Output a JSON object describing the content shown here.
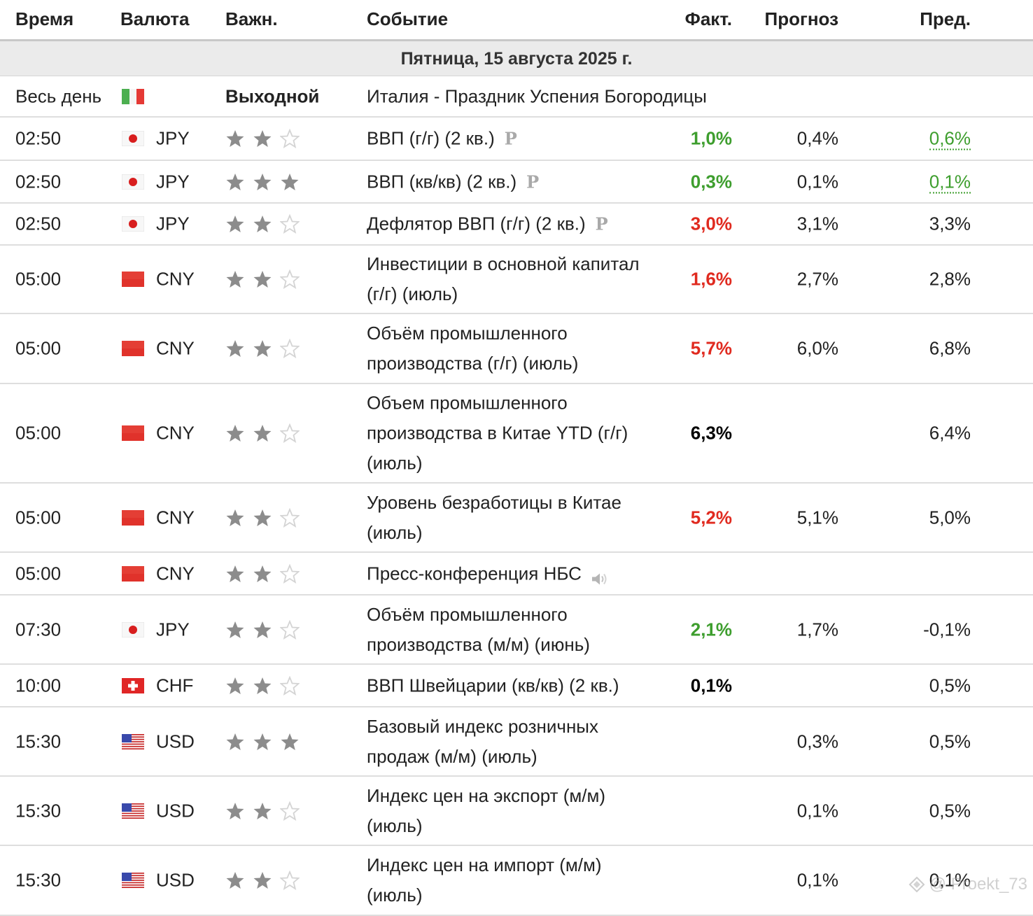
{
  "headers": {
    "time": "Время",
    "currency": "Валюта",
    "importance": "Важн.",
    "event": "Событие",
    "actual": "Факт.",
    "forecast": "Прогноз",
    "previous": "Пред."
  },
  "date_label": "Пятница, 15 августа 2025 г.",
  "holiday": {
    "time": "Весь день",
    "flag": "italy-flag",
    "label": "Выходной",
    "event": "Италия - Праздник Успения Богородицы"
  },
  "colors": {
    "positive": "#3e9e2e",
    "negative": "#e02a1f",
    "neutral": "#000000",
    "star_filled": "#8c8c8c",
    "star_empty": "#d4d4d4"
  },
  "rows": [
    {
      "time": "02:50",
      "flag": "japan-flag",
      "currency": "JPY",
      "stars": 2,
      "event": "ВВП (г/г) (2 кв.)",
      "prelim": "P",
      "speaker": false,
      "actual": "1,0%",
      "actual_class": "green",
      "forecast": "0,4%",
      "previous": "0,6%",
      "previous_revised": true
    },
    {
      "time": "02:50",
      "flag": "japan-flag",
      "currency": "JPY",
      "stars": 3,
      "event": "ВВП (кв/кв) (2 кв.)",
      "prelim": "P",
      "speaker": false,
      "actual": "0,3%",
      "actual_class": "green",
      "forecast": "0,1%",
      "previous": "0,1%",
      "previous_revised": true
    },
    {
      "time": "02:50",
      "flag": "japan-flag",
      "currency": "JPY",
      "stars": 2,
      "event": "Дефлятор ВВП (г/г) (2 кв.)",
      "prelim": "P",
      "speaker": false,
      "actual": "3,0%",
      "actual_class": "red",
      "forecast": "3,1%",
      "previous": "3,3%",
      "previous_revised": false
    },
    {
      "time": "05:00",
      "flag": "china-flag",
      "currency": "CNY",
      "stars": 2,
      "event": "Инвестиции в основной капитал (г/г) (июль)",
      "prelim": "",
      "speaker": false,
      "actual": "1,6%",
      "actual_class": "red",
      "forecast": "2,7%",
      "previous": "2,8%",
      "previous_revised": false
    },
    {
      "time": "05:00",
      "flag": "china-flag",
      "currency": "CNY",
      "stars": 2,
      "event": "Объём промышленного производства (г/г) (июль)",
      "prelim": "",
      "speaker": false,
      "actual": "5,7%",
      "actual_class": "red",
      "forecast": "6,0%",
      "previous": "6,8%",
      "previous_revised": false
    },
    {
      "time": "05:00",
      "flag": "china-flag",
      "currency": "CNY",
      "stars": 2,
      "event": "Объем промышленного производства в Китае YTD (г/г) (июль)",
      "prelim": "",
      "speaker": false,
      "actual": "6,3%",
      "actual_class": "black",
      "forecast": "",
      "previous": "6,4%",
      "previous_revised": false
    },
    {
      "time": "05:00",
      "flag": "china-flag",
      "currency": "CNY",
      "stars": 2,
      "event": "Уровень безработицы в Китае (июль)",
      "prelim": "",
      "speaker": false,
      "actual": "5,2%",
      "actual_class": "red",
      "forecast": "5,1%",
      "previous": "5,0%",
      "previous_revised": false
    },
    {
      "time": "05:00",
      "flag": "china-flag",
      "currency": "CNY",
      "stars": 2,
      "event": "Пресс-конференция НБС",
      "prelim": "",
      "speaker": true,
      "actual": "",
      "actual_class": "black",
      "forecast": "",
      "previous": "",
      "previous_revised": false
    },
    {
      "time": "07:30",
      "flag": "japan-flag",
      "currency": "JPY",
      "stars": 2,
      "event": "Объём промышленного производства (м/м) (июнь)",
      "prelim": "",
      "speaker": false,
      "actual": "2,1%",
      "actual_class": "green",
      "forecast": "1,7%",
      "previous": "-0,1%",
      "previous_revised": false
    },
    {
      "time": "10:00",
      "flag": "switzerland-flag",
      "currency": "CHF",
      "stars": 2,
      "event": "ВВП Швейцарии (кв/кв) (2 кв.)",
      "prelim": "",
      "speaker": false,
      "actual": "0,1%",
      "actual_class": "black",
      "forecast": "",
      "previous": "0,5%",
      "previous_revised": false
    },
    {
      "time": "15:30",
      "flag": "usa-flag",
      "currency": "USD",
      "stars": 3,
      "event": "Базовый индекс розничных продаж (м/м) (июль)",
      "prelim": "",
      "speaker": false,
      "actual": "",
      "actual_class": "black",
      "forecast": "0,3%",
      "previous": "0,5%",
      "previous_revised": false
    },
    {
      "time": "15:30",
      "flag": "usa-flag",
      "currency": "USD",
      "stars": 2,
      "event": "Индекс цен на экспорт (м/м) (июль)",
      "prelim": "",
      "speaker": false,
      "actual": "",
      "actual_class": "black",
      "forecast": "0,1%",
      "previous": "0,5%",
      "previous_revised": false
    },
    {
      "time": "15:30",
      "flag": "usa-flag",
      "currency": "USD",
      "stars": 2,
      "event": "Индекс цен на импорт (м/м) (июль)",
      "prelim": "",
      "speaker": false,
      "actual": "",
      "actual_class": "black",
      "forecast": "0,1%",
      "previous": "0,1%",
      "previous_revised": false
    }
  ],
  "watermark": "@ Proekt_73"
}
